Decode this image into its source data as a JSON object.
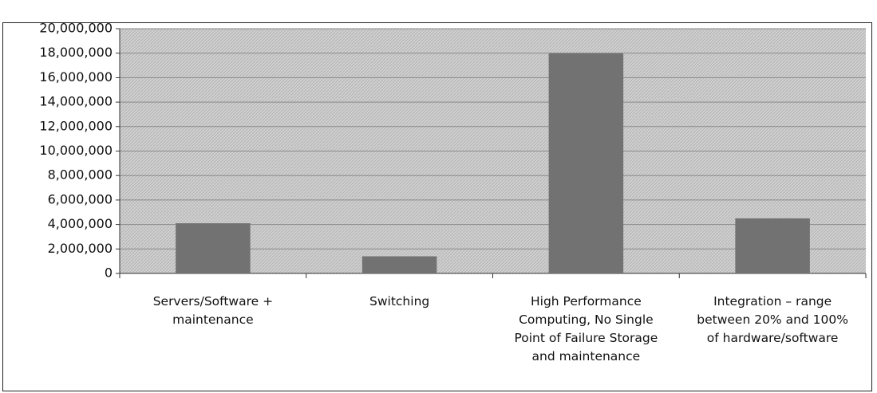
{
  "chart_data": {
    "type": "bar",
    "categories": [
      "Servers/Software + maintenance",
      "Switching",
      "High Performance Computing, No Single Point of Failure Storage and maintenance",
      "Integration – range between 20% and 100% of hardware/software"
    ],
    "values": [
      4100000,
      1400000,
      18000000,
      4500000
    ],
    "color": "#727272",
    "ylim": [
      0,
      20000000
    ],
    "yticks": [
      0,
      {
        "value": 2000000,
        "label": "2,000,000"
      },
      {
        "value": 4000000,
        "label": "4,000,000"
      },
      {
        "value": 6000000,
        "label": "6,000,000"
      },
      {
        "value": 8000000,
        "label": "8,000,000"
      },
      {
        "value": 10000000,
        "label": "10,000,000"
      },
      {
        "value": 12000000,
        "label": "12,000,000"
      },
      {
        "value": 14000000,
        "label": "14,000,000"
      },
      {
        "value": 16000000,
        "label": "16,000,000"
      },
      {
        "value": 18000000,
        "label": "18,000,000"
      },
      {
        "value": 20000000,
        "label": "20,000,000"
      }
    ],
    "grid": true
  }
}
